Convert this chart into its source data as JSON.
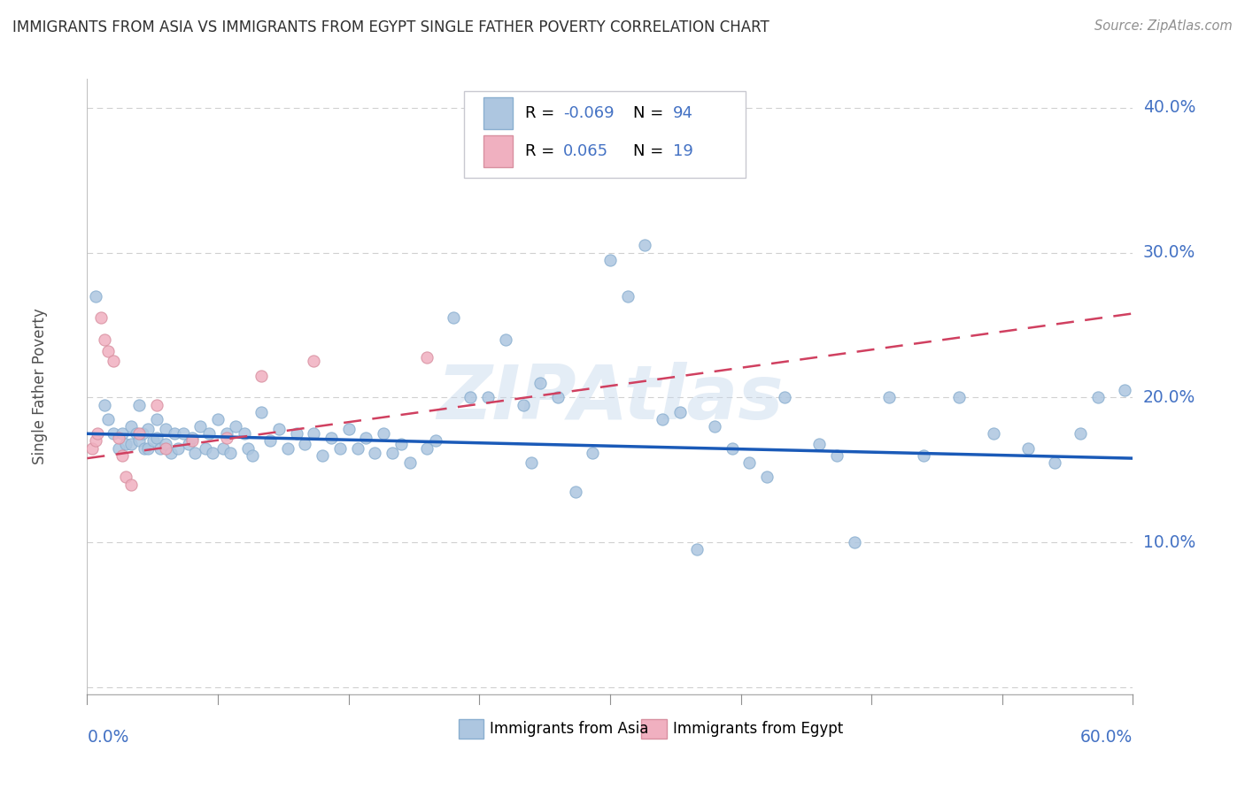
{
  "title": "IMMIGRANTS FROM ASIA VS IMMIGRANTS FROM EGYPT SINGLE FATHER POVERTY CORRELATION CHART",
  "source": "Source: ZipAtlas.com",
  "ylabel": "Single Father Poverty",
  "watermark": "ZIPAtlas",
  "xlim": [
    0.0,
    0.6
  ],
  "ylim": [
    -0.005,
    0.42
  ],
  "ytick_vals": [
    0.0,
    0.1,
    0.2,
    0.3,
    0.4
  ],
  "ytick_labels": [
    "",
    "10.0%",
    "20.0%",
    "30.0%",
    "40.0%"
  ],
  "blue_scatter_color": "#adc6e0",
  "blue_scatter_edge": "#8aafd0",
  "pink_scatter_color": "#f0b0c0",
  "pink_scatter_edge": "#d890a0",
  "blue_line_color": "#1a5ab8",
  "pink_line_color": "#d04060",
  "title_color": "#303030",
  "source_color": "#909090",
  "axis_label_color": "#4472c4",
  "grid_color": "#d0d0d0",
  "blue_trend_y": [
    0.175,
    0.158
  ],
  "pink_trend_y": [
    0.158,
    0.258
  ],
  "asia_x": [
    0.005,
    0.01,
    0.012,
    0.015,
    0.018,
    0.02,
    0.022,
    0.025,
    0.025,
    0.028,
    0.03,
    0.03,
    0.032,
    0.033,
    0.035,
    0.035,
    0.038,
    0.04,
    0.04,
    0.042,
    0.045,
    0.045,
    0.048,
    0.05,
    0.052,
    0.055,
    0.058,
    0.06,
    0.062,
    0.065,
    0.068,
    0.07,
    0.072,
    0.075,
    0.078,
    0.08,
    0.082,
    0.085,
    0.09,
    0.092,
    0.095,
    0.1,
    0.105,
    0.11,
    0.115,
    0.12,
    0.125,
    0.13,
    0.135,
    0.14,
    0.145,
    0.15,
    0.155,
    0.16,
    0.165,
    0.17,
    0.175,
    0.18,
    0.185,
    0.195,
    0.2,
    0.21,
    0.22,
    0.23,
    0.24,
    0.25,
    0.255,
    0.26,
    0.27,
    0.28,
    0.29,
    0.3,
    0.31,
    0.32,
    0.33,
    0.34,
    0.35,
    0.36,
    0.37,
    0.38,
    0.39,
    0.4,
    0.42,
    0.43,
    0.44,
    0.46,
    0.48,
    0.5,
    0.52,
    0.54,
    0.555,
    0.57,
    0.58,
    0.595
  ],
  "asia_y": [
    0.27,
    0.195,
    0.185,
    0.175,
    0.165,
    0.175,
    0.168,
    0.18,
    0.168,
    0.175,
    0.195,
    0.17,
    0.175,
    0.165,
    0.178,
    0.165,
    0.17,
    0.185,
    0.172,
    0.165,
    0.178,
    0.168,
    0.162,
    0.175,
    0.165,
    0.175,
    0.168,
    0.172,
    0.162,
    0.18,
    0.165,
    0.175,
    0.162,
    0.185,
    0.165,
    0.175,
    0.162,
    0.18,
    0.175,
    0.165,
    0.16,
    0.19,
    0.17,
    0.178,
    0.165,
    0.175,
    0.168,
    0.175,
    0.16,
    0.172,
    0.165,
    0.178,
    0.165,
    0.172,
    0.162,
    0.175,
    0.162,
    0.168,
    0.155,
    0.165,
    0.17,
    0.255,
    0.2,
    0.2,
    0.24,
    0.195,
    0.155,
    0.21,
    0.2,
    0.135,
    0.162,
    0.295,
    0.27,
    0.305,
    0.185,
    0.19,
    0.095,
    0.18,
    0.165,
    0.155,
    0.145,
    0.2,
    0.168,
    0.16,
    0.1,
    0.2,
    0.16,
    0.2,
    0.175,
    0.165,
    0.155,
    0.175,
    0.2,
    0.205
  ],
  "egypt_x": [
    0.003,
    0.005,
    0.006,
    0.008,
    0.01,
    0.012,
    0.015,
    0.018,
    0.02,
    0.022,
    0.025,
    0.03,
    0.04,
    0.045,
    0.06,
    0.08,
    0.1,
    0.13,
    0.195
  ],
  "egypt_y": [
    0.165,
    0.17,
    0.175,
    0.255,
    0.24,
    0.232,
    0.225,
    0.172,
    0.16,
    0.145,
    0.14,
    0.175,
    0.195,
    0.165,
    0.17,
    0.172,
    0.215,
    0.225,
    0.228
  ]
}
